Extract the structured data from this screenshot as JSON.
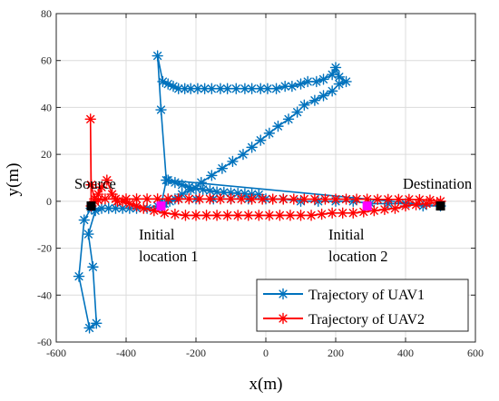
{
  "chart_data": {
    "type": "line",
    "xlabel": "x(m)",
    "ylabel": "y(m)",
    "xlim": [
      -600,
      600
    ],
    "ylim": [
      -60,
      80
    ],
    "xticks": [
      -600,
      -400,
      -200,
      0,
      200,
      400,
      600
    ],
    "yticks": [
      -60,
      -40,
      -20,
      0,
      20,
      40,
      60,
      80
    ],
    "xtick_labels": [
      "-600",
      "-400",
      "-200",
      "0",
      "200",
      "400",
      "600"
    ],
    "ytick_labels": [
      "-60",
      "-40",
      "-20",
      "0",
      "20",
      "40",
      "60",
      "80"
    ],
    "grid": true,
    "legend_position": "bottom-right",
    "series": [
      {
        "name": "Trajectory of UAV1",
        "color": "#0072BD",
        "marker": "asterisk",
        "x": [
          -500,
          -520,
          -535,
          -505,
          -485,
          -495,
          -508,
          -488,
          -470,
          -450,
          -430,
          -410,
          -390,
          -370,
          -340,
          -310,
          -300,
          -285,
          -300,
          -310,
          -295,
          -280,
          -265,
          -250,
          -232,
          -215,
          -195,
          -175,
          -155,
          -130,
          -110,
          -85,
          -60,
          -40,
          -15,
          5,
          30,
          55,
          75,
          100,
          120,
          145,
          165,
          190,
          200,
          210,
          230,
          210,
          190,
          165,
          140,
          110,
          90,
          65,
          35,
          10,
          -15,
          -40,
          -65,
          -95,
          -125,
          -155,
          -185,
          -215,
          -240,
          -260,
          -275,
          -290,
          -295,
          -250,
          -200,
          -150,
          -100,
          -50,
          0,
          50,
          100,
          150,
          200,
          250,
          300,
          350,
          400,
          450,
          500,
          -280,
          -260,
          -240,
          -220,
          -200,
          -180,
          -160,
          -140,
          -120,
          -100,
          -80,
          -60,
          -40,
          -20
        ],
        "y": [
          -3,
          -8,
          -32,
          -54,
          -52,
          -28,
          -14,
          -4,
          -3,
          -3,
          -3,
          -3,
          -3,
          -3,
          -3,
          -2,
          -2,
          9,
          39,
          62,
          51,
          50,
          49,
          48,
          48,
          48,
          48,
          48,
          48,
          48,
          48,
          48,
          48,
          48,
          48,
          48,
          48,
          49,
          49,
          50,
          51,
          51,
          52,
          54,
          57,
          53,
          51,
          50,
          47,
          45,
          43,
          41,
          38,
          35,
          32,
          29,
          26,
          23,
          20,
          17,
          14,
          11,
          8,
          5,
          3,
          1,
          0,
          -1,
          -1,
          1,
          1,
          1,
          1,
          1,
          1,
          1,
          0,
          0,
          0,
          0,
          -1,
          -1,
          -1,
          -2,
          -2,
          9,
          8,
          7,
          6,
          5.5,
          5,
          4.5,
          4,
          3.8,
          3.6,
          3.4,
          3.2,
          3,
          2.8
        ]
      },
      {
        "name": "Trajectory of UAV2",
        "color": "#FF0000",
        "marker": "asterisk",
        "x": [
          -500,
          -502,
          -500,
          -490,
          -480,
          -470,
          -455,
          -440,
          -425,
          -410,
          -390,
          -370,
          -350,
          -320,
          -290,
          -260,
          -230,
          -200,
          -170,
          -140,
          -110,
          -80,
          -50,
          -20,
          10,
          40,
          70,
          100,
          130,
          160,
          190,
          220,
          250,
          280,
          310,
          340,
          370,
          400,
          430,
          460,
          490,
          500,
          470,
          440,
          410,
          380,
          350,
          320,
          290,
          260,
          230,
          200,
          170,
          140,
          110,
          80,
          50,
          20,
          -10,
          -40,
          -70,
          -100,
          -130,
          -160,
          -190,
          -220,
          -250,
          -280,
          -310,
          -340,
          -370,
          -400,
          -430,
          -460,
          -480,
          -490
        ],
        "y": [
          -2,
          35,
          7,
          1,
          3,
          6,
          9,
          3,
          0,
          0,
          -1,
          -2,
          -3,
          -4,
          -5,
          -5.5,
          -6,
          -6,
          -6,
          -6,
          -6,
          -6,
          -6,
          -6,
          -6,
          -6,
          -6,
          -6,
          -6,
          -5.5,
          -5,
          -5,
          -5,
          -4.5,
          -4,
          -3.5,
          -3,
          -2,
          -1.5,
          -1,
          -0.5,
          0,
          0.5,
          0.7,
          0.8,
          0.8,
          0.8,
          0.8,
          0.9,
          0.9,
          0.9,
          0.9,
          0.9,
          0.9,
          0.9,
          0.9,
          0.9,
          0.9,
          0.9,
          0.9,
          1,
          1,
          1,
          1,
          1,
          1,
          1,
          1,
          1,
          1,
          1,
          1,
          1,
          1,
          0.5,
          0
        ]
      }
    ],
    "annotations": [
      {
        "id": "source",
        "text": "Source",
        "x": -500,
        "y": -2,
        "marker_color": "#000000"
      },
      {
        "id": "destination",
        "text": "Destination",
        "x": 500,
        "y": -2,
        "marker_color": "#000000"
      },
      {
        "id": "initial1",
        "text_line1": "Initial",
        "text_line2": "location 1",
        "x": -300,
        "y": -2,
        "marker_color": "#FF00FF"
      },
      {
        "id": "initial2",
        "text_line1": "Initial",
        "text_line2": "location 2",
        "x": 290,
        "y": -2,
        "marker_color": "#FF00FF"
      }
    ]
  }
}
